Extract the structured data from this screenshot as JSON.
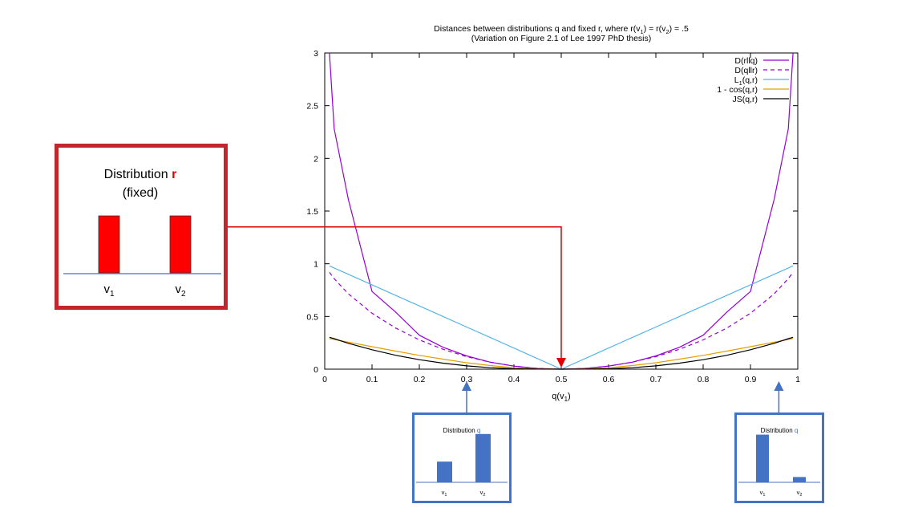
{
  "chart_data": {
    "type": "line",
    "title": "Distances between distributions q and fixed r, where r(v1) =  r(v2) = .5",
    "title_parts": [
      "Distances between distributions q and fixed r, where r(v",
      "1",
      ") =  r(v",
      "2",
      ") = .5"
    ],
    "subtitle": "(Variation on Figure 2.1 of Lee 1997 PhD thesis)",
    "xlabel": "q(v1)",
    "xlabel_parts": [
      "q(v",
      "1",
      ")"
    ],
    "ylabel": "",
    "xlim": [
      0,
      1
    ],
    "ylim": [
      0,
      3
    ],
    "x_ticks": [
      "0",
      "0.1",
      "0.2",
      "0.3",
      "0.4",
      "0.5",
      "0.6",
      "0.7",
      "0.8",
      "0.9",
      "1"
    ],
    "x_tick_values": [
      0,
      0.1,
      0.2,
      0.3,
      0.4,
      0.5,
      0.6,
      0.7,
      0.8,
      0.9,
      1
    ],
    "y_ticks": [
      "0",
      "0.5",
      "1",
      "1.5",
      "2",
      "2.5",
      "3"
    ],
    "y_tick_values": [
      0,
      0.5,
      1,
      1.5,
      2,
      2.5,
      3
    ],
    "grid": false,
    "legend_position": "top-right",
    "x": [
      0.01,
      0.02,
      0.05,
      0.1,
      0.15,
      0.2,
      0.25,
      0.3,
      0.35,
      0.4,
      0.45,
      0.5,
      0.55,
      0.6,
      0.65,
      0.7,
      0.75,
      0.8,
      0.85,
      0.9,
      0.95,
      0.98,
      0.99
    ],
    "series": [
      {
        "name": "D(r||q)",
        "legend_label": "D(rllq)",
        "color": "#9400d3",
        "dash": "solid",
        "values": [
          3.0,
          2.28,
          1.61,
          0.737,
          0.541,
          0.322,
          0.208,
          0.126,
          0.066,
          0.029,
          0.007,
          0.0,
          0.007,
          0.029,
          0.066,
          0.126,
          0.208,
          0.322,
          0.541,
          0.737,
          1.61,
          2.28,
          3.0
        ]
      },
      {
        "name": "D(q||r)",
        "legend_label": "D(qllr)",
        "color": "#9400d3",
        "dash": "dashed",
        "values": [
          0.919,
          0.859,
          0.714,
          0.531,
          0.39,
          0.278,
          0.189,
          0.119,
          0.066,
          0.029,
          0.007,
          0.0,
          0.007,
          0.029,
          0.066,
          0.119,
          0.189,
          0.278,
          0.39,
          0.531,
          0.714,
          0.859,
          0.919
        ]
      },
      {
        "name": "L1(q,r)",
        "legend_label": "L1(q,r)",
        "legend_parts": [
          "L",
          "1",
          "(q,r)"
        ],
        "color": "#56b4e9",
        "dash": "solid",
        "values": [
          0.98,
          0.96,
          0.9,
          0.8,
          0.7,
          0.6,
          0.5,
          0.4,
          0.3,
          0.2,
          0.1,
          0.0,
          0.1,
          0.2,
          0.3,
          0.4,
          0.5,
          0.6,
          0.7,
          0.8,
          0.9,
          0.96,
          0.98
        ]
      },
      {
        "name": "1 - cos(q,r)",
        "legend_label": "1 - cos(q,r)",
        "color": "#e69f00",
        "dash": "solid",
        "values": [
          0.291,
          0.282,
          0.256,
          0.213,
          0.171,
          0.131,
          0.095,
          0.061,
          0.034,
          0.014,
          0.003,
          0.0,
          0.003,
          0.014,
          0.034,
          0.061,
          0.095,
          0.131,
          0.171,
          0.213,
          0.256,
          0.282,
          0.291
        ]
      },
      {
        "name": "JS(q,r)",
        "legend_label": "JS(q,r)",
        "color": "#000000",
        "dash": "solid",
        "values": [
          0.302,
          0.289,
          0.245,
          0.184,
          0.132,
          0.09,
          0.057,
          0.031,
          0.014,
          0.004,
          0.001,
          0.0,
          0.001,
          0.004,
          0.014,
          0.031,
          0.057,
          0.09,
          0.132,
          0.184,
          0.245,
          0.289,
          0.302
        ]
      }
    ]
  },
  "annotations": {
    "box_r": {
      "title_prefix": "Distribution ",
      "title_var": "r",
      "subtitle": "(fixed)",
      "label_v1": "v",
      "label_v1_sub": "1",
      "label_v2": "v",
      "label_v2_sub": "2",
      "bars": [
        0.5,
        0.5
      ],
      "bar_color": "#ff0000",
      "border_color": "#c0262c",
      "points_to_x": 0.5,
      "points_to_y": 1.35
    },
    "box_q1": {
      "title_prefix": "Distribution ",
      "title_var": "q",
      "label_v1": "v",
      "label_v1_sub": "1",
      "label_v2": "v",
      "label_v2_sub": "2",
      "bars": [
        0.3,
        0.7
      ],
      "bar_color": "#4472c4",
      "border_color": "#4472c4",
      "points_to_x": 0.3
    },
    "box_q2": {
      "title_prefix": "Distribution ",
      "title_var": "q",
      "label_v1": "v",
      "label_v1_sub": "1",
      "label_v2": "v",
      "label_v2_sub": "2",
      "bars": [
        0.9,
        0.1
      ],
      "bar_color": "#4472c4",
      "border_color": "#4472c4",
      "points_to_x": 0.96
    },
    "arrow_color_r": "#e00000",
    "arrow_color_q": "#4472c4"
  }
}
